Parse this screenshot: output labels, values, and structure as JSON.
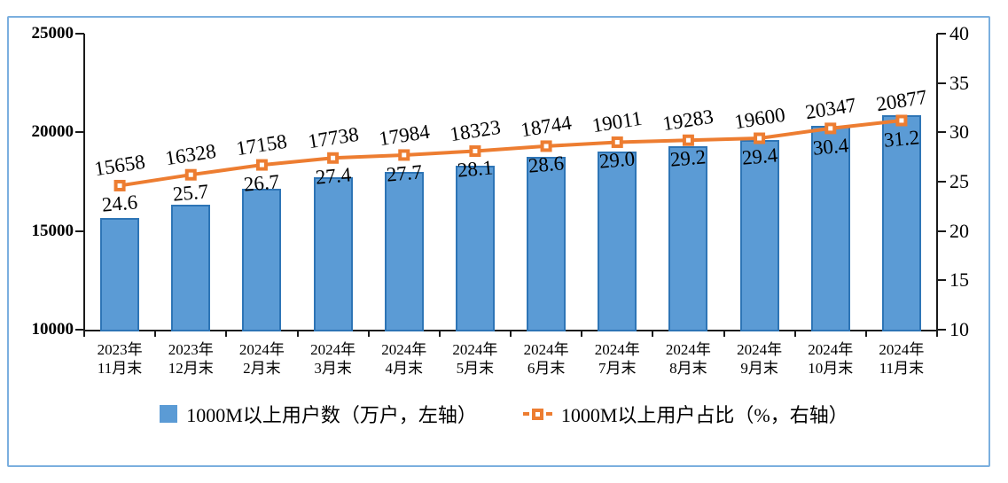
{
  "chart_data": {
    "type": "bar",
    "subtype": "combo-bar-line-dual-axis",
    "categories": [
      "2023年\n11月末",
      "2023年\n12月末",
      "2024年\n2月末",
      "2024年\n3月末",
      "2024年\n4月末",
      "2024年\n5月末",
      "2024年\n6月末",
      "2024年\n7月末",
      "2024年\n8月末",
      "2024年\n9月末",
      "2024年\n10月末",
      "2024年\n11月末"
    ],
    "series": [
      {
        "name": "1000M以上用户数（万户，左轴）",
        "type": "bar",
        "axis": "left",
        "values": [
          15658,
          16328,
          17158,
          17738,
          17984,
          18323,
          18744,
          19011,
          19283,
          19600,
          20347,
          20877
        ]
      },
      {
        "name": "1000M以上用户占比（%，右轴）",
        "type": "line",
        "axis": "right",
        "values": [
          24.6,
          25.7,
          26.7,
          27.4,
          27.7,
          28.1,
          28.6,
          29.0,
          29.2,
          29.4,
          30.4,
          31.2
        ]
      }
    ],
    "left_axis": {
      "min": 10000,
      "max": 25000,
      "tick_labels": [
        "25000",
        "20000",
        "15000",
        "10000"
      ]
    },
    "right_axis": {
      "min": 10,
      "max": 40,
      "tick_labels": [
        "40",
        "35",
        "30",
        "25",
        "20",
        "15",
        "10"
      ]
    },
    "grid": false,
    "legend_position": "bottom",
    "colors": {
      "bar_fill": "#5B9BD5",
      "bar_border": "#2E75B6",
      "line": "#ED7D31",
      "frame_border": "#7BAFDF",
      "text": "#000000"
    }
  }
}
